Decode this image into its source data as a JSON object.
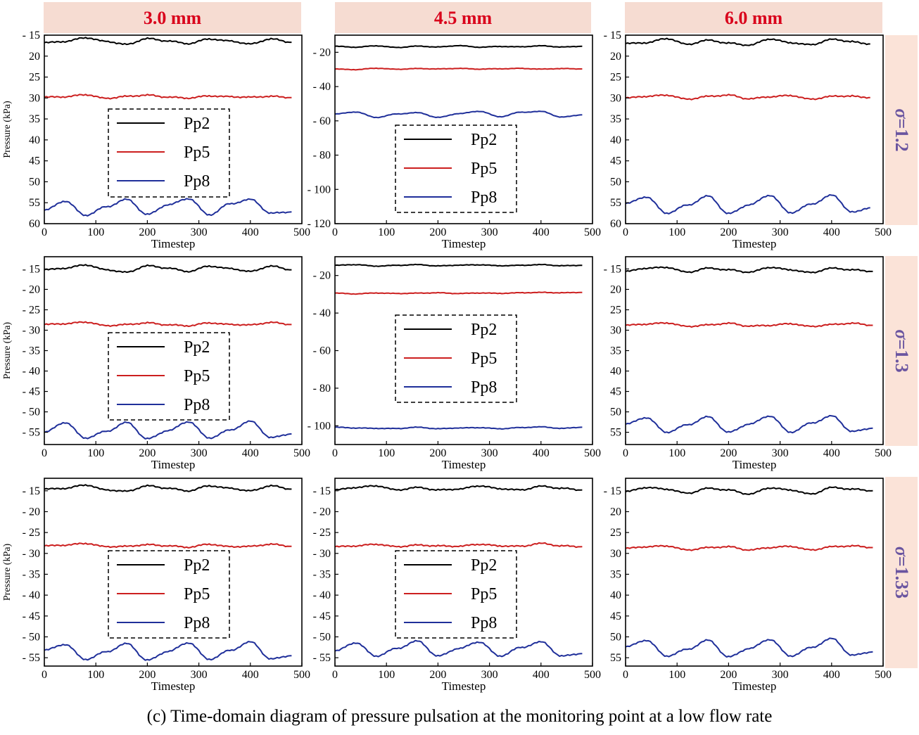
{
  "figure": {
    "caption": "(c) Time-domain diagram of pressure pulsation at the monitoring point at a low flow rate",
    "column_headers": [
      "3.0 mm",
      "4.5 mm",
      "6.0 mm"
    ],
    "row_headers": [
      {
        "symbol": "σ",
        "value": "=1.2"
      },
      {
        "symbol": "σ",
        "value": "=1.3"
      },
      {
        "symbol": "σ",
        "value": "=1.33"
      }
    ],
    "colors": {
      "header_text": "#d9001b",
      "header_bg": "#f6dcd2",
      "row_label": "#6a55a0",
      "Pp2": "#000000",
      "Pp5": "#cc1f1f",
      "Pp8": "#1f2f9a"
    }
  },
  "chart_data": [
    {
      "type": "line",
      "panel": "3.0 mm / σ=1.2",
      "xlabel": "Timestep",
      "ylabel": "Pressure (kPa)",
      "xlim": [
        0,
        500
      ],
      "ylim": [
        -60,
        -15
      ],
      "y_axis_reversed": true,
      "xticks": [
        0,
        100,
        200,
        300,
        400,
        500
      ],
      "yticks": [
        -15,
        -20,
        -25,
        -30,
        -35,
        -40,
        -45,
        -50,
        -55,
        -60
      ],
      "ytick_labels": [
        "- 15",
        "20",
        "25",
        "30",
        "35",
        "40",
        "45",
        "50",
        "55",
        "60"
      ],
      "x": [
        0,
        40,
        80,
        120,
        160,
        200,
        240,
        280,
        320,
        360,
        400,
        440,
        480
      ],
      "series": [
        {
          "name": "Pp2",
          "values": [
            -16.8,
            -16.5,
            -15.6,
            -16.5,
            -17.2,
            -15.8,
            -16.4,
            -17.0,
            -15.9,
            -16.4,
            -17.1,
            -15.9,
            -16.7
          ]
        },
        {
          "name": "Pp5",
          "values": [
            -29.8,
            -29.7,
            -29.2,
            -30.1,
            -29.6,
            -29.3,
            -29.8,
            -30.0,
            -29.5,
            -29.7,
            -29.8,
            -29.6,
            -29.9
          ]
        },
        {
          "name": "Pp8",
          "values": [
            -56.8,
            -54.6,
            -58.0,
            -56.0,
            -54.2,
            -57.8,
            -55.5,
            -54.0,
            -57.9,
            -55.3,
            -54.2,
            -57.5,
            -57.2
          ]
        }
      ],
      "legend": {
        "position": "center-left",
        "frame": "dashed"
      }
    },
    {
      "type": "line",
      "panel": "4.5 mm / σ=1.2",
      "xlabel": "Timestep",
      "ylabel": "",
      "xlim": [
        0,
        500
      ],
      "ylim": [
        -120,
        -10
      ],
      "y_axis_reversed": true,
      "xticks": [
        0,
        100,
        200,
        300,
        400,
        500
      ],
      "yticks": [
        -20,
        -40,
        -60,
        -80,
        -100,
        -120
      ],
      "ytick_labels": [
        "- 20",
        "- 40",
        "- 60",
        "- 80",
        "- 100",
        "- 120"
      ],
      "x": [
        0,
        40,
        80,
        120,
        160,
        200,
        240,
        280,
        320,
        360,
        400,
        440,
        480
      ],
      "series": [
        {
          "name": "Pp2",
          "values": [
            -16.5,
            -17.0,
            -16.2,
            -17.2,
            -16.4,
            -16.9,
            -16.1,
            -17.0,
            -16.6,
            -16.8,
            -16.2,
            -16.9,
            -16.5
          ]
        },
        {
          "name": "Pp5",
          "values": [
            -29.8,
            -30.1,
            -29.3,
            -29.9,
            -29.5,
            -29.7,
            -29.4,
            -29.8,
            -29.6,
            -29.4,
            -29.8,
            -29.5,
            -29.7
          ]
        },
        {
          "name": "Pp8",
          "values": [
            -56.0,
            -54.8,
            -58.0,
            -56.0,
            -55.2,
            -58.0,
            -55.8,
            -54.4,
            -57.6,
            -55.0,
            -54.5,
            -57.8,
            -56.5
          ]
        }
      ],
      "legend": {
        "position": "lower-center",
        "frame": "dashed"
      }
    },
    {
      "type": "line",
      "panel": "6.0 mm / σ=1.2",
      "xlabel": "Timestep",
      "ylabel": "",
      "xlim": [
        0,
        500
      ],
      "ylim": [
        -60,
        -15
      ],
      "y_axis_reversed": true,
      "xticks": [
        0,
        100,
        200,
        300,
        400,
        500
      ],
      "yticks": [
        -15,
        -20,
        -25,
        -30,
        -35,
        -40,
        -45,
        -50,
        -55,
        -60
      ],
      "ytick_labels": [
        "- 15",
        "20",
        "25",
        "30",
        "35",
        "40",
        "45",
        "50",
        "55",
        "60"
      ],
      "x": [
        0,
        40,
        80,
        120,
        160,
        200,
        240,
        280,
        320,
        360,
        400,
        440,
        475
      ],
      "series": [
        {
          "name": "Pp2",
          "values": [
            -17.0,
            -16.8,
            -15.8,
            -17.2,
            -16.2,
            -16.9,
            -17.4,
            -15.9,
            -16.8,
            -17.3,
            -16.0,
            -16.5,
            -17.1
          ]
        },
        {
          "name": "Pp5",
          "values": [
            -30.0,
            -29.6,
            -29.3,
            -30.3,
            -29.6,
            -29.3,
            -30.2,
            -29.7,
            -29.4,
            -30.3,
            -29.6,
            -29.5,
            -29.9
          ]
        },
        {
          "name": "Pp8",
          "values": [
            -55.2,
            -53.6,
            -57.5,
            -55.6,
            -53.4,
            -57.6,
            -55.5,
            -53.2,
            -57.4,
            -55.4,
            -53.2,
            -57.2,
            -56.2
          ]
        }
      ],
      "legend": {
        "position": "none",
        "frame": "none"
      }
    },
    {
      "type": "line",
      "panel": "3.0 mm / σ=1.3",
      "xlabel": "Timestep",
      "ylabel": "Pressure (kPa)",
      "xlim": [
        0,
        500
      ],
      "ylim": [
        -58,
        -12
      ],
      "y_axis_reversed": true,
      "xticks": [
        0,
        100,
        200,
        300,
        400,
        500
      ],
      "yticks": [
        -15,
        -20,
        -25,
        -30,
        -35,
        -40,
        -45,
        -50,
        -55
      ],
      "ytick_labels": [
        "- 15",
        "- 20",
        "- 25",
        "- 30",
        "- 35",
        "- 40",
        "- 45",
        "- 50",
        "- 55"
      ],
      "x": [
        0,
        40,
        80,
        120,
        160,
        200,
        240,
        280,
        320,
        360,
        400,
        440,
        480
      ],
      "series": [
        {
          "name": "Pp2",
          "values": [
            -15.2,
            -14.8,
            -14.0,
            -15.2,
            -15.8,
            -14.2,
            -14.8,
            -15.6,
            -14.3,
            -14.9,
            -15.6,
            -14.3,
            -15.2
          ]
        },
        {
          "name": "Pp5",
          "values": [
            -28.6,
            -28.4,
            -28.0,
            -28.9,
            -28.6,
            -28.2,
            -28.7,
            -28.9,
            -28.2,
            -28.6,
            -28.7,
            -28.1,
            -28.6
          ]
        },
        {
          "name": "Pp8",
          "values": [
            -55.0,
            -52.6,
            -56.4,
            -54.8,
            -52.6,
            -56.6,
            -54.6,
            -52.4,
            -56.4,
            -54.5,
            -52.3,
            -56.3,
            -55.4
          ]
        }
      ],
      "legend": {
        "position": "center-left",
        "frame": "dashed"
      }
    },
    {
      "type": "line",
      "panel": "4.5 mm / σ=1.3",
      "xlabel": "Timestep",
      "ylabel": "",
      "xlim": [
        0,
        500
      ],
      "ylim": [
        -110,
        -10
      ],
      "y_axis_reversed": true,
      "xticks": [
        0,
        100,
        200,
        300,
        400,
        500
      ],
      "yticks": [
        -20,
        -40,
        -60,
        -80,
        -100
      ],
      "ytick_labels": [
        "- 20",
        "- 40",
        "- 60",
        "- 80",
        "- 100"
      ],
      "x": [
        0,
        40,
        80,
        120,
        160,
        200,
        240,
        280,
        320,
        360,
        400,
        440,
        480
      ],
      "series": [
        {
          "name": "Pp2",
          "values": [
            -14.6,
            -14.2,
            -15.0,
            -14.6,
            -14.2,
            -14.9,
            -14.5,
            -14.3,
            -14.8,
            -14.6,
            -14.2,
            -14.8,
            -14.6
          ]
        },
        {
          "name": "Pp5",
          "values": [
            -29.4,
            -29.8,
            -29.3,
            -29.6,
            -29.4,
            -29.2,
            -29.6,
            -29.3,
            -29.5,
            -29.2,
            -29.0,
            -29.2,
            -29.0
          ]
        },
        {
          "name": "Pp8",
          "values": [
            -100.8,
            -101.2,
            -101.4,
            -101.5,
            -100.8,
            -101.6,
            -101.2,
            -101.0,
            -101.6,
            -101.0,
            -100.6,
            -101.4,
            -100.8
          ]
        }
      ],
      "legend": {
        "position": "center",
        "frame": "dashed"
      }
    },
    {
      "type": "line",
      "panel": "6.0 mm / σ=1.3",
      "xlabel": "Timestep",
      "ylabel": "",
      "xlim": [
        0,
        500
      ],
      "ylim": [
        -58,
        -12
      ],
      "y_axis_reversed": true,
      "xticks": [
        0,
        100,
        200,
        300,
        400,
        500
      ],
      "yticks": [
        -15,
        -20,
        -25,
        -30,
        -35,
        -40,
        -45,
        -50,
        -55
      ],
      "ytick_labels": [
        "- 15",
        "20",
        "25",
        "30",
        "35",
        "40",
        "45",
        "50",
        "55"
      ],
      "x": [
        0,
        40,
        80,
        120,
        160,
        200,
        240,
        280,
        320,
        360,
        400,
        440,
        480
      ],
      "series": [
        {
          "name": "Pp2",
          "values": [
            -15.6,
            -14.8,
            -14.6,
            -15.8,
            -14.8,
            -15.2,
            -15.8,
            -14.6,
            -15.2,
            -15.9,
            -14.8,
            -15.2,
            -15.6
          ]
        },
        {
          "name": "Pp5",
          "values": [
            -28.8,
            -28.5,
            -28.2,
            -29.1,
            -28.7,
            -28.3,
            -29.0,
            -28.8,
            -28.4,
            -29.1,
            -28.6,
            -28.3,
            -28.8
          ]
        },
        {
          "name": "Pp8",
          "values": [
            -53.0,
            -51.4,
            -55.0,
            -53.2,
            -51.2,
            -55.0,
            -53.0,
            -51.0,
            -55.0,
            -52.8,
            -51.0,
            -54.8,
            -54.0
          ]
        }
      ],
      "legend": {
        "position": "none",
        "frame": "none"
      }
    },
    {
      "type": "line",
      "panel": "3.0 mm / σ=1.33",
      "xlabel": "Timestep",
      "ylabel": "Pressure (kPa)",
      "xlim": [
        0,
        500
      ],
      "ylim": [
        -57,
        -12
      ],
      "y_axis_reversed": true,
      "xticks": [
        0,
        100,
        200,
        300,
        400,
        500
      ],
      "yticks": [
        -15,
        -20,
        -25,
        -30,
        -35,
        -40,
        -45,
        -50,
        -55
      ],
      "ytick_labels": [
        "- 15",
        "- 20",
        "- 25",
        "- 30",
        "- 35",
        "- 40",
        "- 45",
        "- 50",
        "- 55"
      ],
      "x": [
        0,
        40,
        80,
        120,
        160,
        200,
        240,
        280,
        320,
        360,
        400,
        440,
        480
      ],
      "series": [
        {
          "name": "Pp2",
          "values": [
            -14.6,
            -14.4,
            -13.6,
            -14.8,
            -15.1,
            -13.8,
            -14.4,
            -15.0,
            -13.8,
            -14.4,
            -15.0,
            -13.8,
            -14.6
          ]
        },
        {
          "name": "Pp5",
          "values": [
            -28.2,
            -28.0,
            -27.6,
            -28.4,
            -28.3,
            -27.9,
            -28.2,
            -28.5,
            -27.8,
            -28.4,
            -28.3,
            -27.8,
            -28.3
          ]
        },
        {
          "name": "Pp8",
          "values": [
            -53.2,
            -51.8,
            -55.4,
            -53.6,
            -51.6,
            -55.6,
            -53.5,
            -51.4,
            -55.4,
            -53.3,
            -51.2,
            -55.3,
            -54.5
          ]
        }
      ],
      "legend": {
        "position": "center-left",
        "frame": "dashed"
      }
    },
    {
      "type": "line",
      "panel": "4.5 mm / σ=1.33",
      "xlabel": "Timestep",
      "ylabel": "",
      "xlim": [
        0,
        500
      ],
      "ylim": [
        -57,
        -12
      ],
      "y_axis_reversed": true,
      "xticks": [
        0,
        100,
        200,
        300,
        400,
        500
      ],
      "yticks": [
        -15,
        -20,
        -25,
        -30,
        -35,
        -40,
        -45,
        -50,
        -55
      ],
      "ytick_labels": [
        "- 15",
        "- 20",
        "- 25",
        "- 30",
        "- 35",
        "- 40",
        "- 45",
        "- 50",
        "- 55"
      ],
      "x": [
        0,
        40,
        80,
        120,
        160,
        200,
        240,
        280,
        320,
        360,
        400,
        440,
        480
      ],
      "series": [
        {
          "name": "Pp2",
          "values": [
            -14.8,
            -14.2,
            -13.8,
            -14.8,
            -14.2,
            -14.8,
            -14.6,
            -13.8,
            -14.5,
            -14.8,
            -13.9,
            -14.4,
            -14.8
          ]
        },
        {
          "name": "Pp5",
          "values": [
            -28.4,
            -28.2,
            -27.8,
            -28.4,
            -28.0,
            -28.2,
            -28.3,
            -27.8,
            -28.2,
            -28.3,
            -27.6,
            -28.2,
            -28.4
          ]
        },
        {
          "name": "Pp8",
          "values": [
            -53.4,
            -51.4,
            -54.6,
            -52.8,
            -51.0,
            -54.6,
            -52.8,
            -51.2,
            -54.6,
            -52.6,
            -51.2,
            -54.6,
            -54.0
          ]
        }
      ],
      "legend": {
        "position": "center",
        "frame": "dashed"
      }
    },
    {
      "type": "line",
      "panel": "6.0 mm / σ=1.33",
      "xlabel": "Timestep",
      "ylabel": "",
      "xlim": [
        0,
        500
      ],
      "ylim": [
        -57,
        -12
      ],
      "y_axis_reversed": true,
      "xticks": [
        0,
        100,
        200,
        300,
        400,
        500
      ],
      "yticks": [
        -15,
        -20,
        -25,
        -30,
        -35,
        -40,
        -45,
        -50,
        -55
      ],
      "ytick_labels": [
        "- 15",
        "20",
        "25",
        "30",
        "35",
        "40",
        "45",
        "50",
        "55"
      ],
      "x": [
        0,
        40,
        80,
        120,
        160,
        200,
        240,
        280,
        320,
        360,
        400,
        440,
        480
      ],
      "series": [
        {
          "name": "Pp2",
          "values": [
            -15.2,
            -14.2,
            -14.6,
            -15.6,
            -14.4,
            -14.8,
            -15.8,
            -14.3,
            -14.8,
            -15.8,
            -14.2,
            -14.6,
            -15.0
          ]
        },
        {
          "name": "Pp5",
          "values": [
            -28.8,
            -28.4,
            -28.2,
            -29.2,
            -28.6,
            -28.4,
            -29.2,
            -28.6,
            -28.3,
            -29.2,
            -28.4,
            -28.2,
            -28.6
          ]
        },
        {
          "name": "Pp8",
          "values": [
            -52.4,
            -50.8,
            -54.6,
            -53.0,
            -50.8,
            -54.8,
            -52.8,
            -50.6,
            -54.6,
            -52.6,
            -50.4,
            -54.4,
            -53.6
          ]
        }
      ],
      "legend": {
        "position": "none",
        "frame": "none"
      }
    }
  ]
}
